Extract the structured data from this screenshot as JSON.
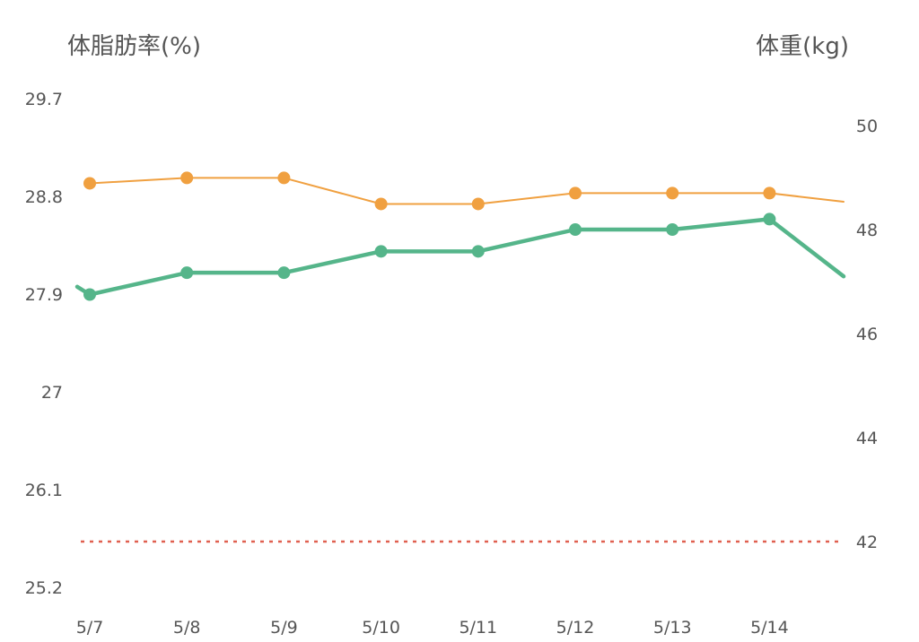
{
  "chart_data": {
    "type": "line",
    "left_axis_title": "体脂肪率(%)",
    "right_axis_title": "体重(kg)",
    "categories": [
      "5/7",
      "5/8",
      "5/9",
      "5/10",
      "5/11",
      "5/12",
      "5/13",
      "5/14"
    ],
    "left_axis": {
      "ticks": [
        "29.7",
        "28.8",
        "27.9",
        "27",
        "26.1",
        "25.2"
      ],
      "tick_values": [
        29.7,
        28.8,
        27.9,
        27.0,
        26.1,
        25.2
      ]
    },
    "right_axis": {
      "ticks": [
        "50",
        "48",
        "46",
        "44",
        "42"
      ],
      "tick_values": [
        50,
        48,
        46,
        44,
        42
      ]
    },
    "series": [
      {
        "axis": "left",
        "color": "#f0a040",
        "values": [
          28.92,
          28.97,
          28.97,
          28.73,
          28.73,
          28.83,
          28.83,
          28.83
        ],
        "trailing_value": 28.75
      },
      {
        "axis": "right",
        "color": "#55b58a",
        "values": [
          46.75,
          47.17,
          47.17,
          47.58,
          47.58,
          48.0,
          48.0,
          48.2
        ],
        "leading_value": 46.9,
        "trailing_value": 47.1
      }
    ],
    "reference_line": {
      "axis": "right",
      "value": 42,
      "color": "#e06050",
      "style": "dotted"
    },
    "grid": false
  }
}
